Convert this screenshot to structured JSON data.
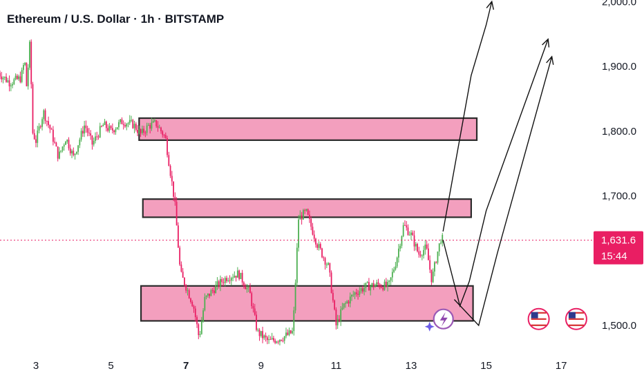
{
  "chart_data": {
    "type": "candlestick",
    "title": "Ethereum / U.S. Dollar · 1h · BITSTAMP",
    "y_ticks": [
      "2,000.0",
      "1,900.0",
      "1,800.0",
      "1,700.0",
      "1,500.0"
    ],
    "y_tick_values": [
      2000,
      1900,
      1800,
      1700,
      1500
    ],
    "x_ticks": [
      {
        "label": "3",
        "day": 3,
        "bold": false
      },
      {
        "label": "5",
        "day": 5,
        "bold": false
      },
      {
        "label": "7",
        "day": 7,
        "bold": true
      },
      {
        "label": "9",
        "day": 9,
        "bold": false
      },
      {
        "label": "11",
        "day": 11,
        "bold": false
      },
      {
        "label": "13",
        "day": 13,
        "bold": false
      },
      {
        "label": "15",
        "day": 15,
        "bold": false
      },
      {
        "label": "17",
        "day": 17,
        "bold": false
      }
    ],
    "ylim": [
      1470,
      2005
    ],
    "xlim": [
      2.0,
      17.6
    ],
    "current_price": {
      "value": 1631.6,
      "label": "1,631.6",
      "countdown": "15:44",
      "color": "#e91e63"
    },
    "up_color": "#4caf50",
    "down_color": "#e91e63",
    "price_path": [
      [
        2.0,
        1890
      ],
      [
        2.3,
        1875
      ],
      [
        2.6,
        1882
      ],
      [
        2.7,
        1910
      ],
      [
        2.75,
        1870
      ],
      [
        2.8,
        1905
      ],
      [
        2.85,
        1945
      ],
      [
        2.9,
        1800
      ],
      [
        3.0,
        1785
      ],
      [
        3.2,
        1830
      ],
      [
        3.4,
        1800
      ],
      [
        3.6,
        1760
      ],
      [
        3.8,
        1790
      ],
      [
        4.0,
        1760
      ],
      [
        4.3,
        1810
      ],
      [
        4.5,
        1780
      ],
      [
        4.8,
        1810
      ],
      [
        5.0,
        1800
      ],
      [
        5.3,
        1815
      ],
      [
        5.6,
        1810
      ],
      [
        5.8,
        1795
      ],
      [
        6.0,
        1808
      ],
      [
        6.2,
        1812
      ],
      [
        6.45,
        1790
      ],
      [
        6.55,
        1750
      ],
      [
        6.7,
        1690
      ],
      [
        6.85,
        1580
      ],
      [
        7.0,
        1560
      ],
      [
        7.2,
        1530
      ],
      [
        7.35,
        1480
      ],
      [
        7.5,
        1540
      ],
      [
        7.8,
        1560
      ],
      [
        8.1,
        1575
      ],
      [
        8.4,
        1580
      ],
      [
        8.7,
        1550
      ],
      [
        8.9,
        1490
      ],
      [
        9.2,
        1475
      ],
      [
        9.5,
        1480
      ],
      [
        9.7,
        1485
      ],
      [
        9.85,
        1490
      ],
      [
        10.0,
        1665
      ],
      [
        10.2,
        1675
      ],
      [
        10.5,
        1625
      ],
      [
        10.8,
        1590
      ],
      [
        11.0,
        1500
      ],
      [
        11.2,
        1530
      ],
      [
        11.5,
        1550
      ],
      [
        11.8,
        1560
      ],
      [
        12.1,
        1563
      ],
      [
        12.4,
        1560
      ],
      [
        12.6,
        1600
      ],
      [
        12.8,
        1655
      ],
      [
        13.0,
        1640
      ],
      [
        13.2,
        1610
      ],
      [
        13.4,
        1620
      ],
      [
        13.55,
        1570
      ],
      [
        13.7,
        1612
      ],
      [
        13.8,
        1636
      ],
      [
        13.85,
        1631.6
      ]
    ],
    "zones": [
      {
        "name": "upper-resistance-zone",
        "x0": 5.75,
        "x1": 14.75,
        "y0": 1786,
        "y1": 1820
      },
      {
        "name": "mid-resistance-zone",
        "x0": 5.85,
        "x1": 14.6,
        "y0": 1667,
        "y1": 1695
      },
      {
        "name": "support-zone",
        "x0": 5.8,
        "x1": 14.65,
        "y0": 1507,
        "y1": 1561
      }
    ],
    "projections": [
      [
        [
          13.85,
          1645
        ],
        [
          14.6,
          1886
        ],
        [
          15.0,
          1964
        ],
        [
          15.15,
          2000
        ]
      ],
      [
        [
          13.85,
          1632
        ],
        [
          14.3,
          1530
        ],
        [
          14.55,
          1568
        ],
        [
          15.0,
          1677
        ],
        [
          16.65,
          1942
        ]
      ],
      [
        [
          14.15,
          1540
        ],
        [
          14.8,
          1500
        ],
        [
          15.3,
          1612
        ],
        [
          16.75,
          1915
        ]
      ]
    ],
    "flag_icon_days": [
      16.4,
      17.4
    ],
    "flag_icon_price": 1495,
    "badge_icon_day": 13.75,
    "badge_icon_price": 1495
  }
}
